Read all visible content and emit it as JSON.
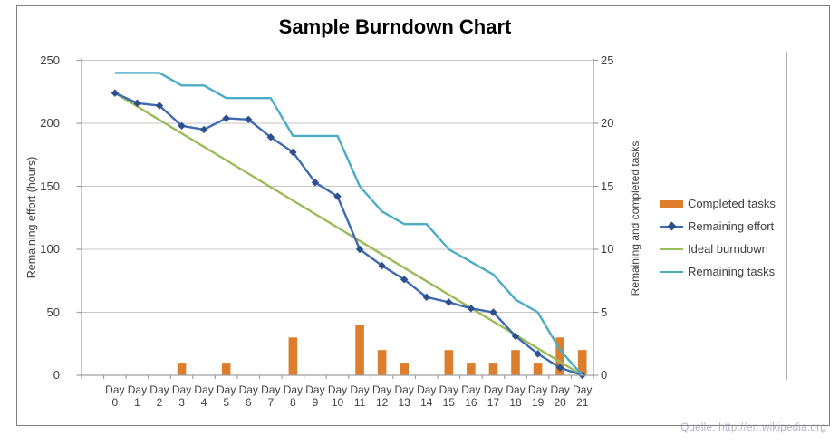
{
  "watermark": "Quelle: http://en.wikipedia.org",
  "chart_data": {
    "type": "combo",
    "title": "Sample Burndown Chart",
    "categories": [
      "Day 0",
      "Day 1",
      "Day 2",
      "Day 3",
      "Day 4",
      "Day 5",
      "Day 6",
      "Day 7",
      "Day 8",
      "Day 9",
      "Day 10",
      "Day 11",
      "Day 12",
      "Day 13",
      "Day 14",
      "Day 15",
      "Day 16",
      "Day 17",
      "Day 18",
      "Day 19",
      "Day 20",
      "Day 21"
    ],
    "left_axis": {
      "label": "Remaining effort (hours)",
      "min": 0,
      "max": 250,
      "ticks": [
        0,
        50,
        100,
        150,
        200,
        250
      ]
    },
    "right_axis": {
      "label": "Remaining and  completed tasks",
      "min": 0,
      "max": 25,
      "ticks": [
        0,
        5,
        10,
        15,
        20,
        25
      ]
    },
    "grid": true,
    "legend_position": "right",
    "series": [
      {
        "name": "Completed tasks",
        "type": "bar",
        "axis": "right",
        "color": "#DD7E2D",
        "values": [
          0,
          0,
          0,
          1,
          0,
          1,
          0,
          0,
          3,
          0,
          0,
          4,
          2,
          1,
          0,
          2,
          1,
          1,
          2,
          1,
          3,
          2
        ]
      },
      {
        "name": "Remaining effort",
        "type": "line",
        "axis": "left",
        "color": "#3E6AB0",
        "marker": "diamond",
        "marker_color": "#2E4F8E",
        "values": [
          224,
          216,
          214,
          198,
          195,
          204,
          203,
          189,
          177,
          153,
          142,
          100,
          87,
          76,
          62,
          58,
          53,
          50,
          31,
          17,
          6,
          0
        ]
      },
      {
        "name": "Ideal burndown",
        "type": "line",
        "axis": "left",
        "color": "#9BBB59",
        "points": [
          [
            0,
            224
          ],
          [
            21,
            0
          ]
        ]
      },
      {
        "name": "Remaining tasks",
        "type": "line",
        "axis": "right",
        "color": "#4BACC6",
        "values": [
          24,
          24,
          24,
          23,
          23,
          22,
          22,
          22,
          19,
          19,
          19,
          15,
          13,
          12,
          12,
          10,
          9,
          8,
          6,
          5,
          2,
          0
        ]
      }
    ]
  }
}
